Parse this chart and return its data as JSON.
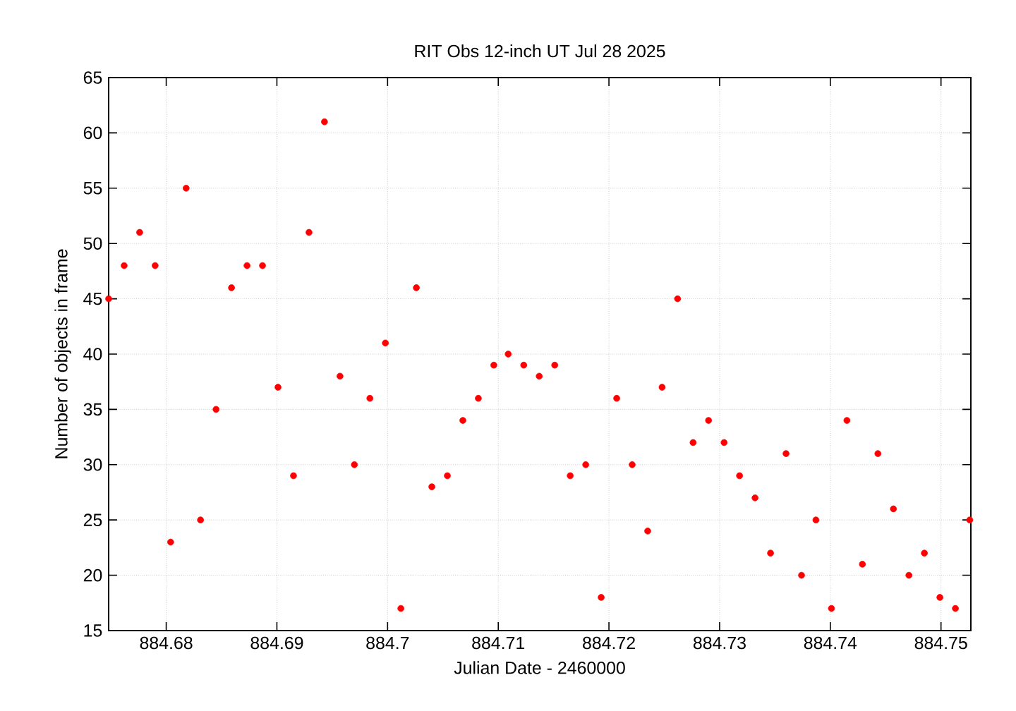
{
  "chart_data": {
    "type": "scatter",
    "title": "RIT Obs 12-inch UT Jul 28 2025",
    "xlabel": "Julian Date - 2460000",
    "ylabel": "Number of objects in frame",
    "x": [
      884.6748,
      884.6762,
      884.6776,
      884.679,
      884.6804,
      884.6818,
      884.6831,
      884.6845,
      884.6859,
      884.6873,
      884.6887,
      884.6901,
      884.6915,
      884.6929,
      884.6943,
      884.6957,
      884.697,
      884.6984,
      884.6998,
      884.7012,
      884.7026,
      884.704,
      884.7054,
      884.7068,
      884.7082,
      884.7096,
      884.7109,
      884.7123,
      884.7137,
      884.7151,
      884.7165,
      884.7179,
      884.7193,
      884.7207,
      884.7221,
      884.7235,
      884.7248,
      884.7262,
      884.7276,
      884.729,
      884.7304,
      884.7318,
      884.7332,
      884.7346,
      884.736,
      884.7374,
      884.7387,
      884.7401,
      884.7415,
      884.7429,
      884.7443,
      884.7457,
      884.7471,
      884.7485,
      884.7499,
      884.7513,
      884.7526
    ],
    "values": [
      45,
      48,
      51,
      48,
      23,
      55,
      25,
      35,
      46,
      48,
      48,
      37,
      29,
      51,
      61,
      38,
      30,
      36,
      41,
      17,
      46,
      28,
      29,
      34,
      36,
      39,
      40,
      39,
      38,
      39,
      29,
      30,
      18,
      36,
      30,
      24,
      37,
      45,
      32,
      34,
      32,
      29,
      27,
      22,
      31,
      20,
      25,
      17,
      34,
      21,
      31,
      26,
      20,
      22,
      18,
      17,
      25
    ],
    "color": "#ff0000",
    "marker": "circle",
    "grid": true,
    "xlim": [
      884.6748,
      884.7527
    ],
    "ylim": [
      15,
      65
    ],
    "xticks": [
      884.68,
      884.69,
      884.7,
      884.71,
      884.72,
      884.73,
      884.74,
      884.75
    ],
    "yticks": [
      15,
      20,
      25,
      30,
      35,
      40,
      45,
      50,
      55,
      60,
      65
    ]
  }
}
